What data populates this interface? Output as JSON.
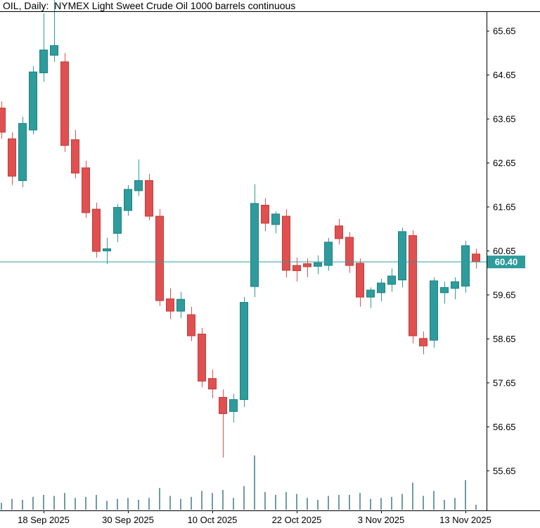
{
  "header": {
    "title": "OIL, Daily:  NYMEX Light Sweet Crude Oil 1000 barrels continuous"
  },
  "chart_data": {
    "type": "candlestick",
    "title": "OIL, Daily: NYMEX Light Sweet Crude Oil 1000 barrels continuous",
    "symbol": "OIL",
    "period": "Daily",
    "instrument": "NYMEX Light Sweet Crude Oil 1000 barrels continuous",
    "ylim": [
      54.75,
      66.1
    ],
    "grid": false,
    "legend": "none",
    "y_axis_labels": [
      "65.65",
      "64.65",
      "63.65",
      "62.65",
      "61.65",
      "60.65",
      "59.65",
      "58.65",
      "57.65",
      "56.65",
      "55.65"
    ],
    "x_axis_ticks": [
      {
        "label": "18 Sep 2025",
        "index": 4
      },
      {
        "label": "30 Sep 2025",
        "index": 12
      },
      {
        "label": "10 Oct 2025",
        "index": 20
      },
      {
        "label": "22 Oct 2025",
        "index": 28
      },
      {
        "label": "3 Nov 2025",
        "index": 36
      },
      {
        "label": "13 Nov 2025",
        "index": 44
      }
    ],
    "current_price": {
      "value": 60.4,
      "label": "60.40"
    },
    "candles": [
      {
        "date": "12 Sep 2025",
        "o": 63.9,
        "h": 64.05,
        "l": 63.2,
        "c": 63.35
      },
      {
        "date": "15 Sep 2025",
        "o": 63.2,
        "h": 63.35,
        "l": 62.15,
        "c": 62.35
      },
      {
        "date": "16 Sep 2025",
        "o": 62.25,
        "h": 63.7,
        "l": 62.1,
        "c": 63.55
      },
      {
        "date": "17 Sep 2025",
        "o": 63.4,
        "h": 64.85,
        "l": 63.3,
        "c": 64.72
      },
      {
        "date": "18 Sep 2025",
        "o": 64.7,
        "h": 66.05,
        "l": 64.5,
        "c": 65.22
      },
      {
        "date": "19 Sep 2025",
        "o": 65.1,
        "h": 66.4,
        "l": 64.95,
        "c": 65.32
      },
      {
        "date": "22 Sep 2025",
        "o": 64.95,
        "h": 65.15,
        "l": 62.9,
        "c": 63.05
      },
      {
        "date": "23 Sep 2025",
        "o": 63.18,
        "h": 63.4,
        "l": 62.3,
        "c": 62.42
      },
      {
        "date": "24 Sep 2025",
        "o": 62.54,
        "h": 62.7,
        "l": 61.4,
        "c": 61.52
      },
      {
        "date": "25 Sep 2025",
        "o": 61.6,
        "h": 61.75,
        "l": 60.5,
        "c": 60.64
      },
      {
        "date": "26 Sep 2025",
        "o": 60.65,
        "h": 60.95,
        "l": 60.35,
        "c": 60.7
      },
      {
        "date": "29 Sep 2025",
        "o": 61.05,
        "h": 61.72,
        "l": 60.85,
        "c": 61.64
      },
      {
        "date": "30 Sep 2025",
        "o": 61.57,
        "h": 62.15,
        "l": 61.45,
        "c": 62.05
      },
      {
        "date": "1 Oct 2025",
        "o": 62.02,
        "h": 62.73,
        "l": 61.9,
        "c": 62.25
      },
      {
        "date": "2 Oct 2025",
        "o": 62.25,
        "h": 62.4,
        "l": 61.35,
        "c": 61.44
      },
      {
        "date": "3 Oct 2025",
        "o": 61.44,
        "h": 61.6,
        "l": 59.4,
        "c": 59.52
      },
      {
        "date": "6 Oct 2025",
        "o": 59.56,
        "h": 59.8,
        "l": 59.1,
        "c": 59.28
      },
      {
        "date": "7 Oct 2025",
        "o": 59.28,
        "h": 59.72,
        "l": 59.12,
        "c": 59.55
      },
      {
        "date": "8 Oct 2025",
        "o": 59.2,
        "h": 59.38,
        "l": 58.6,
        "c": 58.72
      },
      {
        "date": "9 Oct 2025",
        "o": 58.76,
        "h": 58.9,
        "l": 57.55,
        "c": 57.69
      },
      {
        "date": "10 Oct 2025",
        "o": 57.75,
        "h": 57.95,
        "l": 57.3,
        "c": 57.51
      },
      {
        "date": "13 Oct 2025",
        "o": 57.32,
        "h": 57.5,
        "l": 55.95,
        "c": 56.95
      },
      {
        "date": "14 Oct 2025",
        "o": 57.0,
        "h": 57.4,
        "l": 56.75,
        "c": 57.27
      },
      {
        "date": "15 Oct 2025",
        "o": 57.27,
        "h": 59.6,
        "l": 57.1,
        "c": 59.48
      },
      {
        "date": "16 Oct 2025",
        "o": 59.84,
        "h": 62.17,
        "l": 59.6,
        "c": 61.73
      },
      {
        "date": "17 Oct 2025",
        "o": 61.69,
        "h": 61.85,
        "l": 61.1,
        "c": 61.28
      },
      {
        "date": "20 Oct 2025",
        "o": 61.25,
        "h": 61.55,
        "l": 61.05,
        "c": 61.49
      },
      {
        "date": "21 Oct 2025",
        "o": 61.44,
        "h": 61.6,
        "l": 60.05,
        "c": 60.21
      },
      {
        "date": "22 Oct 2025",
        "o": 60.32,
        "h": 60.5,
        "l": 59.95,
        "c": 60.2
      },
      {
        "date": "23 Oct 2025",
        "o": 60.36,
        "h": 60.48,
        "l": 60.05,
        "c": 60.29
      },
      {
        "date": "24 Oct 2025",
        "o": 60.3,
        "h": 60.55,
        "l": 60.12,
        "c": 60.38
      },
      {
        "date": "27 Oct 2025",
        "o": 60.32,
        "h": 60.95,
        "l": 60.2,
        "c": 60.85
      },
      {
        "date": "28 Oct 2025",
        "o": 61.22,
        "h": 61.38,
        "l": 60.8,
        "c": 60.93
      },
      {
        "date": "29 Oct 2025",
        "o": 60.96,
        "h": 61.08,
        "l": 60.15,
        "c": 60.32
      },
      {
        "date": "30 Oct 2025",
        "o": 60.37,
        "h": 60.48,
        "l": 59.38,
        "c": 59.6
      },
      {
        "date": "31 Oct 2025",
        "o": 59.6,
        "h": 59.82,
        "l": 59.35,
        "c": 59.76
      },
      {
        "date": "3 Nov 2025",
        "o": 59.7,
        "h": 60.02,
        "l": 59.5,
        "c": 59.92
      },
      {
        "date": "4 Nov 2025",
        "o": 59.89,
        "h": 60.25,
        "l": 59.72,
        "c": 60.08
      },
      {
        "date": "5 Nov 2025",
        "o": 59.99,
        "h": 61.18,
        "l": 59.82,
        "c": 61.09
      },
      {
        "date": "6 Nov 2025",
        "o": 61.0,
        "h": 61.12,
        "l": 58.55,
        "c": 58.72
      },
      {
        "date": "7 Nov 2025",
        "o": 58.66,
        "h": 58.82,
        "l": 58.3,
        "c": 58.49
      },
      {
        "date": "10 Nov 2025",
        "o": 58.62,
        "h": 60.05,
        "l": 58.45,
        "c": 59.97
      },
      {
        "date": "11 Nov 2025",
        "o": 59.7,
        "h": 59.95,
        "l": 59.45,
        "c": 59.82
      },
      {
        "date": "12 Nov 2025",
        "o": 59.8,
        "h": 60.05,
        "l": 59.55,
        "c": 59.95
      },
      {
        "date": "13 Nov 2025",
        "o": 59.85,
        "h": 60.88,
        "l": 59.7,
        "c": 60.77
      },
      {
        "date": "14 Nov 2025",
        "o": 60.58,
        "h": 60.7,
        "l": 60.25,
        "c": 60.4
      }
    ],
    "volumes": [
      14,
      22,
      20,
      26,
      30,
      28,
      34,
      24,
      26,
      30,
      18,
      22,
      24,
      20,
      24,
      44,
      28,
      22,
      26,
      38,
      34,
      40,
      24,
      48,
      110,
      36,
      30,
      36,
      32,
      24,
      20,
      28,
      30,
      30,
      34,
      22,
      24,
      26,
      32,
      55,
      28,
      38,
      20,
      24,
      60,
      10
    ],
    "colors": {
      "up": "#2E9C9C",
      "up_border": "#1E7F7F",
      "down": "#E05050",
      "down_border": "#C43B3B",
      "price_line": "#2E9C9C",
      "price_tag_bg": "#2E9C9C",
      "price_tag_text": "#FFFFFF",
      "volume": "#6F9BA3",
      "axis_line": "#000000",
      "text": "#000000",
      "background": "#FFFFFF"
    }
  }
}
